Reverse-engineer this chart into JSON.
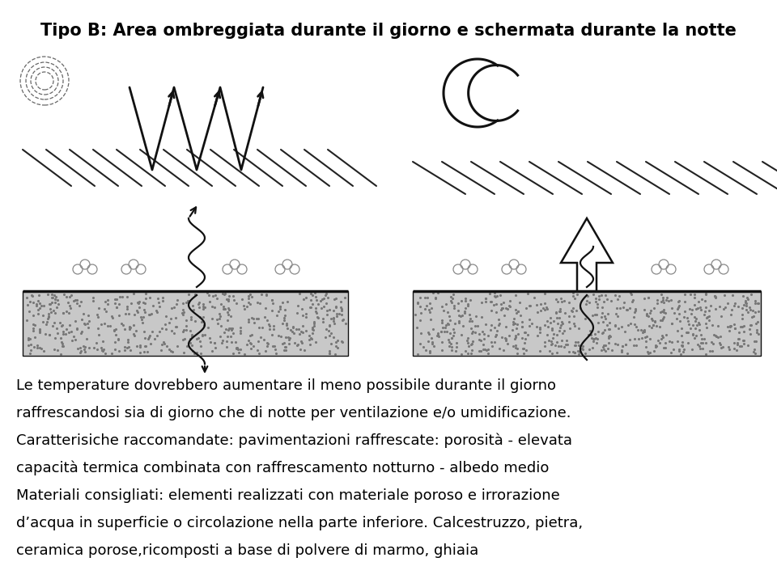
{
  "title": "Tipo B: Area ombreggiata durante il giorno e schermata durante la notte",
  "title_fontsize": 15,
  "title_fontweight": "bold",
  "bg_color": "#ffffff",
  "text_color": "#000000",
  "paragraph1_line1": "Le temperature dovrebbero aumentare il meno possibile durante il giorno",
  "paragraph1_line2": "raffrescandosi sia di giorno che di notte per ventilazione e/o umidificazione.",
  "paragraph2_line1": "Caratterisiche raccomandate: pavimentazioni raffrescate: porosità - elevata",
  "paragraph2_line2": "capacità termica combinata con raffrescamento notturno - albedo medio",
  "paragraph3_line1": "Materiali consigliati: elementi realizzati con materiale poroso e irrorazione",
  "paragraph3_line2": "d’acqua in superficie o circolazione nella parte inferiore. Calcestruzzo, pietra,",
  "paragraph3_line3": "ceramica porose,ricomposti a base di polvere di marmo, ghiaia",
  "text_fontsize": 13.0
}
